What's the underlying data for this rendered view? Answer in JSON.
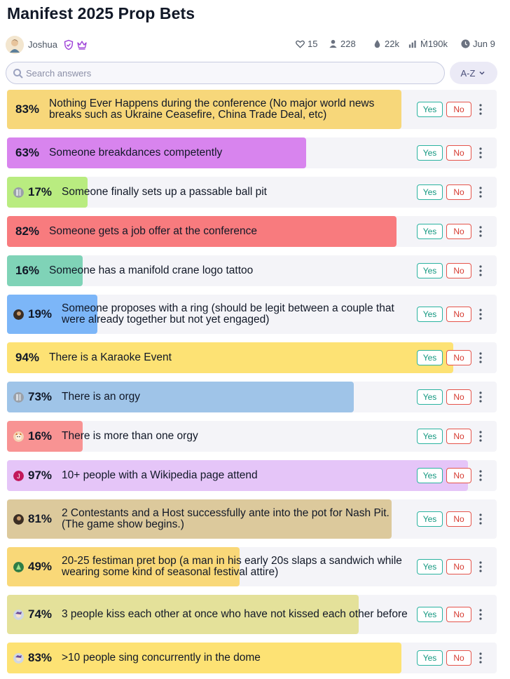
{
  "page": {
    "title": "Manifest 2025 Prop Bets"
  },
  "meta": {
    "author": "Joshua",
    "likes": "15",
    "traders": "228",
    "liquidity": "22k",
    "volume": "Ṁ190k",
    "close_date": "Jun 9"
  },
  "search": {
    "placeholder": "Search answers",
    "sort_label": "A-Z"
  },
  "buttons": {
    "yes": "Yes",
    "no": "No"
  },
  "colors": {
    "yes_border": "#2bb3a0",
    "no_border": "#e5544b",
    "row_bg": "#f4f4f8"
  },
  "answers": [
    {
      "pct": "83%",
      "value": 83,
      "text": "Nothing Ever Happens during the conference (No major world news breaks such as Ukraine Ceasefire, China Trade Deal, etc)",
      "color": "#f7d77a",
      "avatar": ""
    },
    {
      "pct": "63%",
      "value": 63,
      "text": "Someone breakdances competently",
      "color": "#d884ee",
      "avatar": ""
    },
    {
      "pct": "17%",
      "value": 17,
      "text": "Someone finally sets up a passable ball pit",
      "color": "#b9ec80",
      "avatar": "gray"
    },
    {
      "pct": "82%",
      "value": 82,
      "text": "Someone gets a job offer at the conference",
      "color": "#f87b7e",
      "avatar": ""
    },
    {
      "pct": "16%",
      "value": 16,
      "text": "Someone has a manifold crane logo tattoo",
      "color": "#7fd3b7",
      "avatar": ""
    },
    {
      "pct": "19%",
      "value": 19,
      "text": "Someone proposes with a ring (should be legit between a couple that were already together but not yet engaged)",
      "color": "#7cb6f8",
      "avatar": "dark"
    },
    {
      "pct": "94%",
      "value": 94,
      "text": "There is a Karaoke Event",
      "color": "#fde274",
      "avatar": ""
    },
    {
      "pct": "73%",
      "value": 73,
      "text": "There is an orgy",
      "color": "#9fc4e8",
      "avatar": "gray"
    },
    {
      "pct": "16%",
      "value": 16,
      "text": "There is more than one orgy",
      "color": "#f89393",
      "avatar": "cartoon"
    },
    {
      "pct": "97%",
      "value": 97,
      "text": "10+ people with a Wikipedia page attend",
      "color": "#e5c5f8",
      "avatar": "pink"
    },
    {
      "pct": "81%",
      "value": 81,
      "text": "2 Contestants and a Host successfully ante into the pot for Nash Pit. (The game show begins.)",
      "color": "#dcc99c",
      "avatar": "dark"
    },
    {
      "pct": "49%",
      "value": 49,
      "text": "20-25 festiman pret bop (a man in his early 20s slaps a sandwich while wearing some kind of seasonal festival attire)",
      "color": "#f9d878",
      "avatar": "green"
    },
    {
      "pct": "74%",
      "value": 74,
      "text": "3 people kiss each other at once who have not kissed each other before",
      "color": "#e4e19a",
      "avatar": "cartoon2"
    },
    {
      "pct": "83%",
      "value": 83,
      "text": ">10 people sing concurrently in the dome",
      "color": "#fde274",
      "avatar": "cartoon2"
    }
  ]
}
